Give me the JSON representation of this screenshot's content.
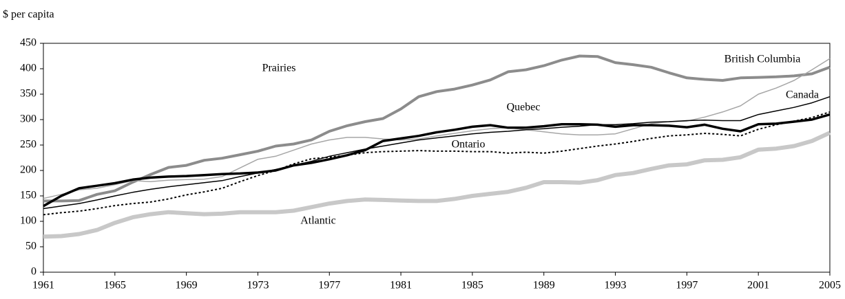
{
  "chart_data": {
    "type": "line",
    "y_label": "$ per capita",
    "x": [
      1961,
      1962,
      1963,
      1964,
      1965,
      1966,
      1967,
      1968,
      1969,
      1970,
      1971,
      1972,
      1973,
      1974,
      1975,
      1976,
      1977,
      1978,
      1979,
      1980,
      1981,
      1982,
      1983,
      1984,
      1985,
      1986,
      1987,
      1988,
      1989,
      1990,
      1991,
      1992,
      1993,
      1994,
      1995,
      1996,
      1997,
      1998,
      1999,
      2000,
      2001,
      2002,
      2003,
      2004,
      2005
    ],
    "xlim": [
      1961,
      2005
    ],
    "xticks": [
      1961,
      1965,
      1969,
      1973,
      1977,
      1981,
      1985,
      1989,
      1993,
      1997,
      2001,
      2005
    ],
    "ylim": [
      0,
      450
    ],
    "yticks": [
      0,
      50,
      100,
      150,
      200,
      250,
      300,
      350,
      400,
      450
    ],
    "series": [
      {
        "name": "Atlantic",
        "color": "#c8c8c8",
        "values": [
          70,
          71,
          75,
          83,
          97,
          108,
          114,
          118,
          116,
          114,
          115,
          118,
          118,
          118,
          121,
          128,
          135,
          140,
          143,
          142,
          141,
          140,
          140,
          144,
          150,
          154,
          158,
          166,
          177,
          177,
          176,
          181,
          191,
          195,
          203,
          210,
          212,
          220,
          221,
          226,
          241,
          243,
          248,
          258,
          274
        ]
      },
      {
        "name": "Prairies",
        "color": "#8c8c8c",
        "values": [
          140,
          140,
          141,
          153,
          160,
          177,
          192,
          206,
          210,
          220,
          224,
          231,
          238,
          248,
          252,
          260,
          277,
          288,
          296,
          302,
          321,
          345,
          355,
          360,
          368,
          378,
          394,
          398,
          406,
          417,
          425,
          424,
          412,
          408,
          403,
          392,
          382,
          379,
          377,
          382,
          383,
          384,
          386,
          390,
          403
        ]
      },
      {
        "name": "British Columbia",
        "color": "#a6a6a6",
        "values": [
          145,
          153,
          162,
          165,
          172,
          180,
          178,
          181,
          182,
          183,
          188,
          205,
          222,
          228,
          240,
          252,
          260,
          265,
          265,
          262,
          260,
          262,
          268,
          273,
          278,
          282,
          284,
          280,
          276,
          272,
          270,
          270,
          272,
          282,
          292,
          296,
          297,
          305,
          315,
          327,
          350,
          362,
          377,
          398,
          420
        ]
      },
      {
        "name": "Canada",
        "color": "#000000",
        "values": [
          125,
          130,
          135,
          142,
          150,
          157,
          163,
          168,
          172,
          176,
          180,
          188,
          195,
          202,
          210,
          218,
          228,
          235,
          242,
          248,
          254,
          260,
          264,
          268,
          272,
          275,
          277,
          280,
          282,
          285,
          287,
          290,
          290,
          292,
          295,
          296,
          298,
          299,
          298,
          298,
          310,
          317,
          324,
          333,
          345
        ]
      },
      {
        "name": "Ontario",
        "color": "#000000",
        "values": [
          113,
          117,
          120,
          125,
          131,
          135,
          138,
          144,
          152,
          158,
          165,
          178,
          190,
          200,
          213,
          223,
          226,
          230,
          235,
          237,
          238,
          239,
          238,
          238,
          237,
          237,
          234,
          236,
          234,
          238,
          243,
          248,
          252,
          257,
          263,
          268,
          270,
          273,
          271,
          268,
          281,
          290,
          297,
          304,
          315
        ]
      },
      {
        "name": "Quebec",
        "color": "#000000",
        "values": [
          130,
          150,
          165,
          170,
          175,
          182,
          186,
          188,
          189,
          191,
          193,
          194,
          196,
          200,
          210,
          215,
          222,
          230,
          240,
          258,
          263,
          268,
          275,
          280,
          286,
          289,
          284,
          284,
          287,
          291,
          291,
          290,
          286,
          289,
          289,
          288,
          285,
          290,
          282,
          277,
          291,
          292,
          296,
          300,
          310
        ]
      }
    ]
  }
}
